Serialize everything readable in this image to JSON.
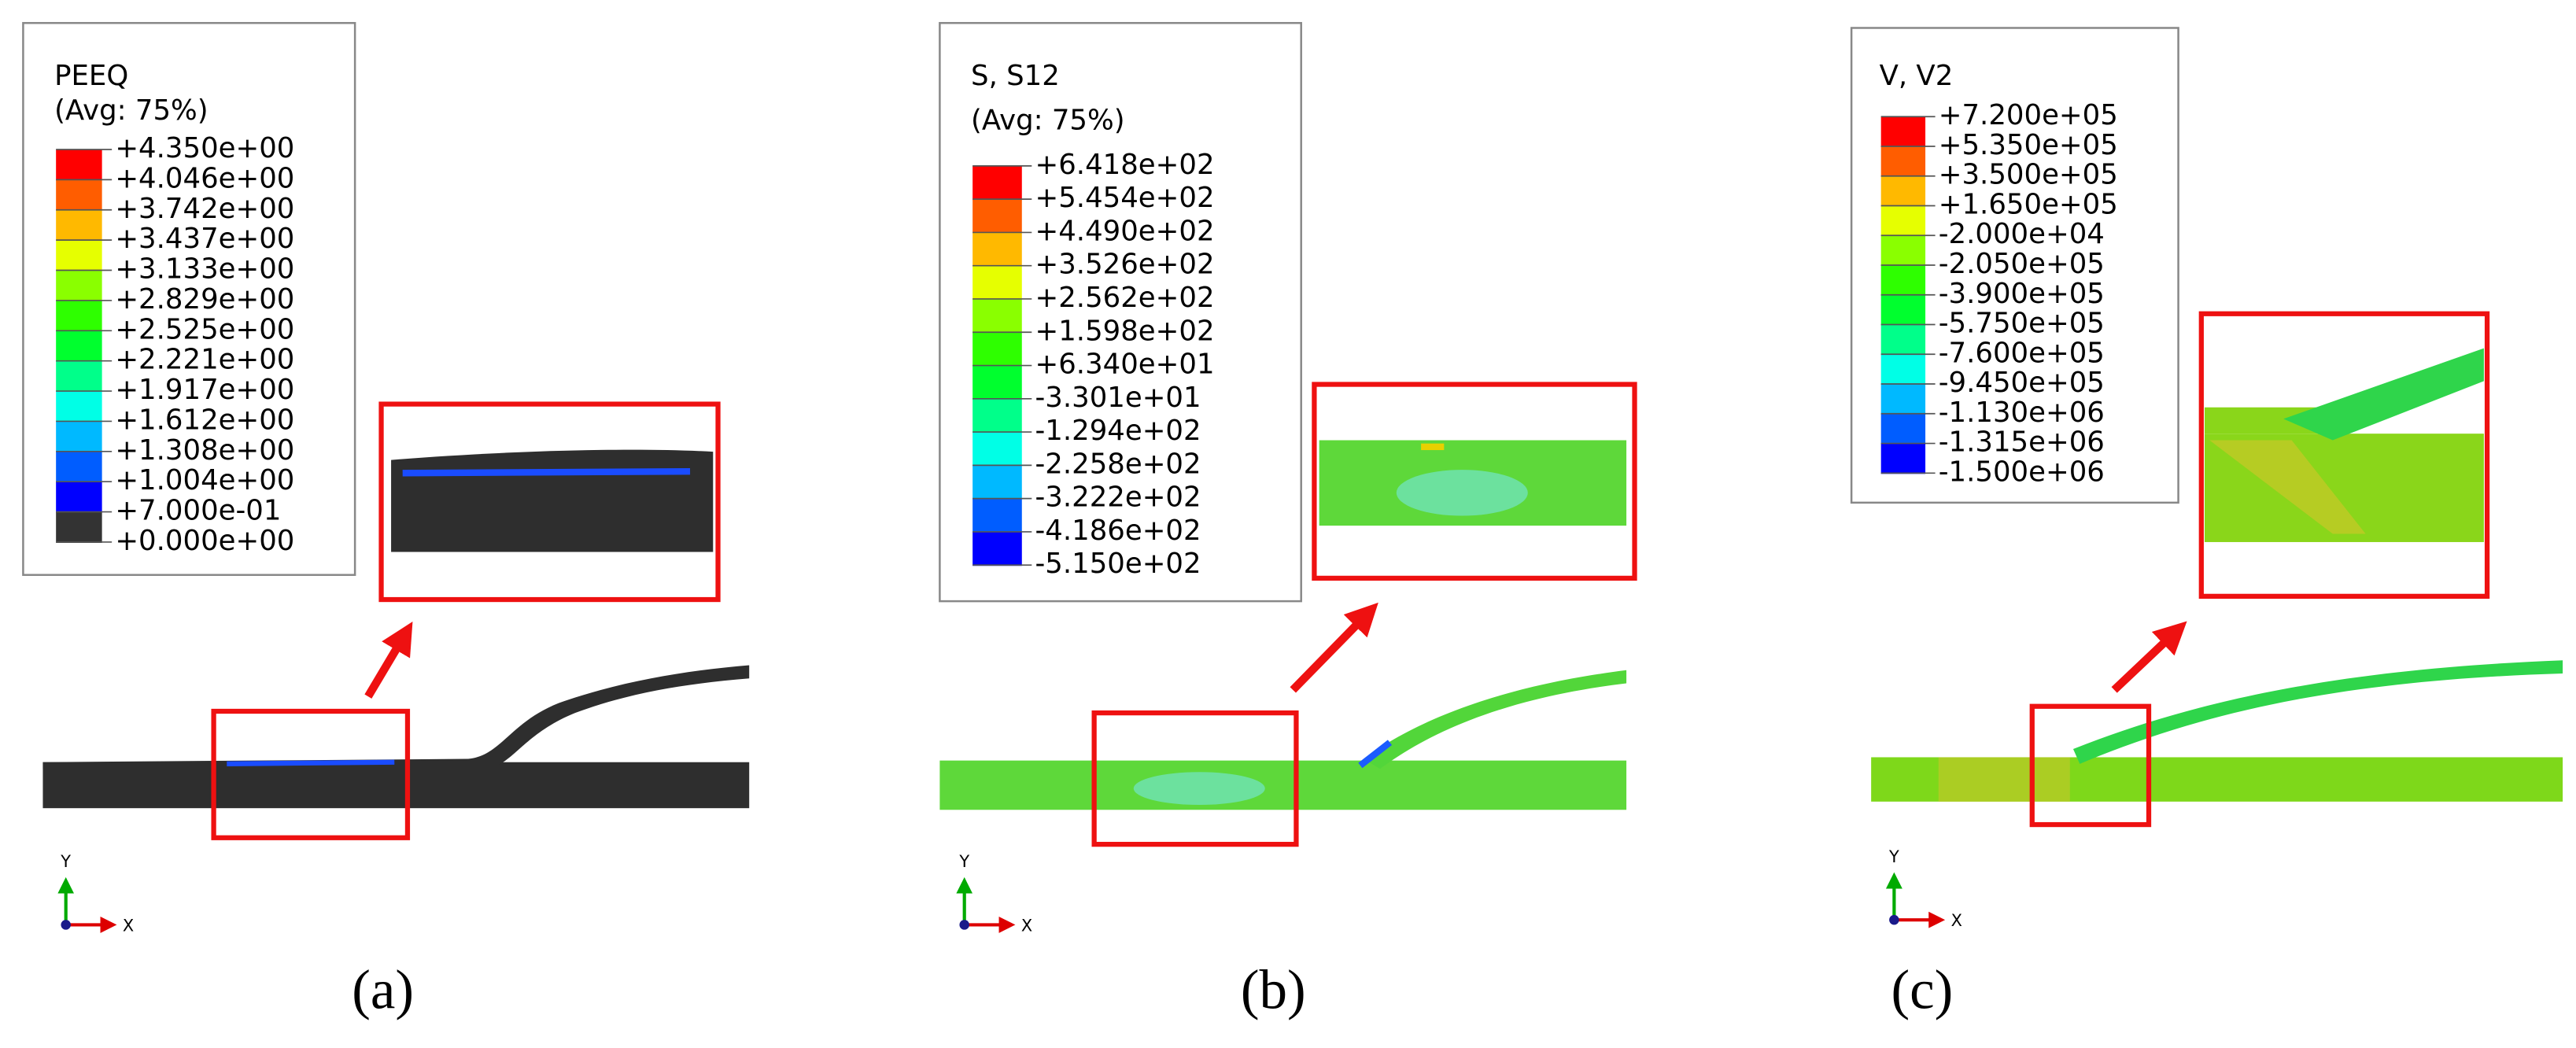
{
  "panels": [
    {
      "legend": {
        "title": "PEEQ",
        "subtitle": "(Avg: 75%)",
        "labels": [
          "+4.350e+00",
          "+4.046e+00",
          "+3.742e+00",
          "+3.437e+00",
          "+3.133e+00",
          "+2.829e+00",
          "+2.525e+00",
          "+2.221e+00",
          "+1.917e+00",
          "+1.612e+00",
          "+1.308e+00",
          "+1.004e+00",
          "+7.000e-01",
          "+0.000e+00"
        ]
      },
      "axes": {
        "y": "Y",
        "x": "X"
      },
      "caption": "(a)"
    },
    {
      "legend": {
        "title": "S, S12",
        "subtitle": "(Avg: 75%)",
        "labels": [
          "+6.418e+02",
          "+5.454e+02",
          "+4.490e+02",
          "+3.526e+02",
          "+2.562e+02",
          "+1.598e+02",
          "+6.340e+01",
          "-3.301e+01",
          "-1.294e+02",
          "-2.258e+02",
          "-3.222e+02",
          "-4.186e+02",
          "-5.150e+02"
        ]
      },
      "axes": {
        "y": "Y",
        "x": "X"
      },
      "caption": "(b)"
    },
    {
      "legend": {
        "title": "V, V2",
        "labels": [
          "+7.200e+05",
          "+5.350e+05",
          "+3.500e+05",
          "+1.650e+05",
          "-2.000e+04",
          "-2.050e+05",
          "-3.900e+05",
          "-5.750e+05",
          "-7.600e+05",
          "-9.450e+05",
          "-1.130e+06",
          "-1.315e+06",
          "-1.500e+06"
        ]
      },
      "axes": {
        "y": "Y",
        "x": "X"
      },
      "caption": "(c)"
    }
  ]
}
